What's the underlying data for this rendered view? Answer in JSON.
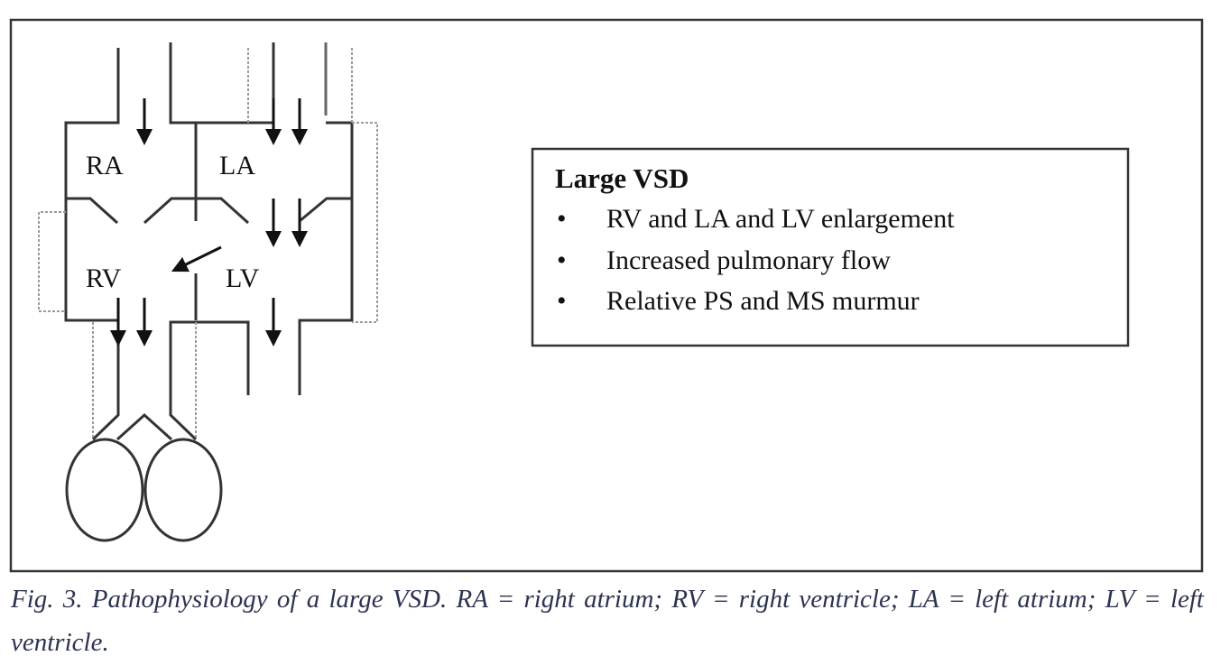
{
  "diagram": {
    "labels": {
      "ra": "RA",
      "la": "LA",
      "rv": "RV",
      "lv": "LV"
    },
    "info_box": {
      "title": "Large VSD",
      "bullet": "•",
      "items": [
        "RV and LA and LV enlargement",
        "Increased pulmonary flow",
        "Relative PS and MS murmur"
      ]
    }
  },
  "caption": "Fig. 3. Pathophysiology of a large VSD. RA = right atrium; RV = right ventricle; LA = left atrium; LV = left ventricle.",
  "colors": {
    "lines": "#222222",
    "dotted": "#999999",
    "caption": "#2b3350"
  }
}
